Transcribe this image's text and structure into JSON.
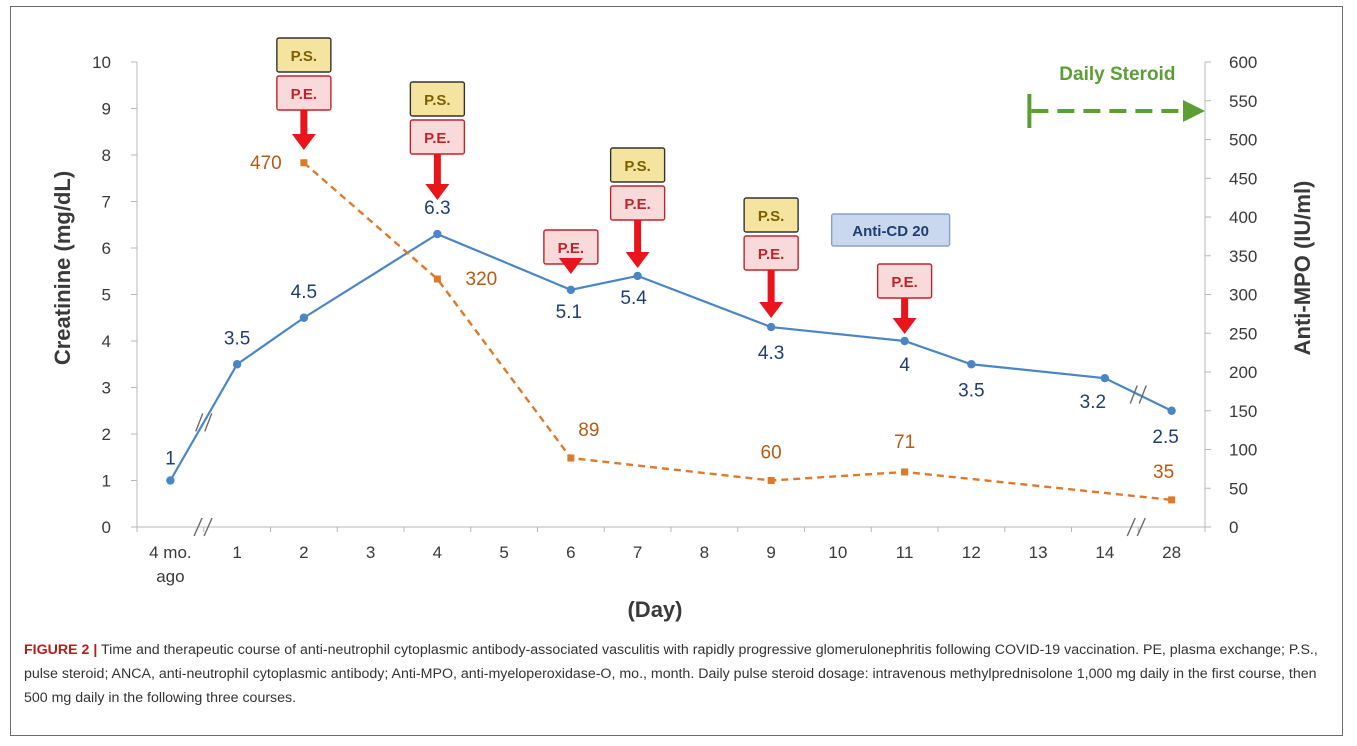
{
  "chart_data": {
    "type": "line",
    "xlabel": "(Day)",
    "ylabel_left": "Creatinine (mg/dL)",
    "ylabel_right": "Anti-MPO (IU/ml)",
    "ylim_left": [
      0,
      10
    ],
    "ylim_right": [
      0,
      600
    ],
    "y_ticks_left": [
      "0",
      "1",
      "2",
      "3",
      "4",
      "5",
      "6",
      "7",
      "8",
      "9",
      "10"
    ],
    "y_ticks_right": [
      "0",
      "50",
      "100",
      "150",
      "200",
      "250",
      "300",
      "350",
      "400",
      "450",
      "500",
      "550",
      "600"
    ],
    "categories": [
      "4 mo.\nago",
      "1",
      "2",
      "3",
      "4",
      "5",
      "6",
      "7",
      "8",
      "9",
      "10",
      "11",
      "12",
      "13",
      "14",
      "28"
    ],
    "axis_breaks": "between 4 mo. ago and 1; between 14 and 28",
    "series": [
      {
        "name": "Creatinine",
        "axis": "left",
        "style": "solid",
        "color": "#4a86c5",
        "points": [
          {
            "x": "4 mo.\nago",
            "y": 1,
            "label": "1"
          },
          {
            "x": "1",
            "y": 3.5,
            "label": "3.5"
          },
          {
            "x": "2",
            "y": 4.5,
            "label": "4.5"
          },
          {
            "x": "4",
            "y": 6.3,
            "label": "6.3"
          },
          {
            "x": "6",
            "y": 5.1,
            "label": "5.1"
          },
          {
            "x": "7",
            "y": 5.4,
            "label": "5.4"
          },
          {
            "x": "9",
            "y": 4.3,
            "label": "4.3"
          },
          {
            "x": "11",
            "y": 4,
            "label": "4"
          },
          {
            "x": "12",
            "y": 3.5,
            "label": "3.5"
          },
          {
            "x": "14",
            "y": 3.2,
            "label": "3.2"
          },
          {
            "x": "28",
            "y": 2.5,
            "label": "2.5"
          }
        ]
      },
      {
        "name": "Anti-MPO",
        "axis": "right",
        "style": "dashed",
        "color": "#e0782a",
        "points": [
          {
            "x": "2",
            "y": 470,
            "label": "470"
          },
          {
            "x": "4",
            "y": 320,
            "label": "320"
          },
          {
            "x": "6",
            "y": 89,
            "label": "89"
          },
          {
            "x": "9",
            "y": 60,
            "label": "60"
          },
          {
            "x": "11",
            "y": 71,
            "label": "71"
          },
          {
            "x": "28",
            "y": 35,
            "label": "35"
          }
        ]
      }
    ],
    "interventions": [
      {
        "day": "2",
        "labels": [
          "P.S.",
          "P.E."
        ]
      },
      {
        "day": "4",
        "labels": [
          "P.S.",
          "P.E."
        ]
      },
      {
        "day": "6",
        "labels": [
          "P.E."
        ]
      },
      {
        "day": "7",
        "labels": [
          "P.S.",
          "P.E."
        ]
      },
      {
        "day": "9",
        "labels": [
          "P.S.",
          "P.E."
        ]
      },
      {
        "day": "11",
        "labels": [
          "Anti-CD 20",
          "P.E."
        ]
      }
    ],
    "daily_steroid": {
      "label": "Daily Steroid",
      "from_day": "12"
    },
    "colors": {
      "ps_fill": "#f5e3a0",
      "ps_text": "#7a6000",
      "pe_fill": "#f8dada",
      "pe_border": "#c0242a",
      "pe_text": "#c0242a",
      "arrow": "#e8161c",
      "cd20_fill": "#c9d8ef",
      "cd20_text": "#1f3d6e",
      "steroid": "#5a9e34",
      "creat_label": "#1f3d78",
      "mpo_label": "#b85a14",
      "axis_text": "#3a3a3a"
    }
  },
  "caption": {
    "figure_label": "FIGURE 2 |",
    "text": " Time and therapeutic course of anti-neutrophil cytoplasmic antibody-associated vasculitis with rapidly progressive glomerulonephritis following COVID-19 vaccination. PE, plasma exchange; P.S., pulse steroid; ANCA, anti-neutrophil cytoplasmic antibody; Anti-MPO, anti-myeloperoxidase-O, mo., month. Daily pulse steroid dosage: intravenous methylprednisolone 1,000 mg daily in the first course, then 500 mg daily in the following three courses."
  }
}
